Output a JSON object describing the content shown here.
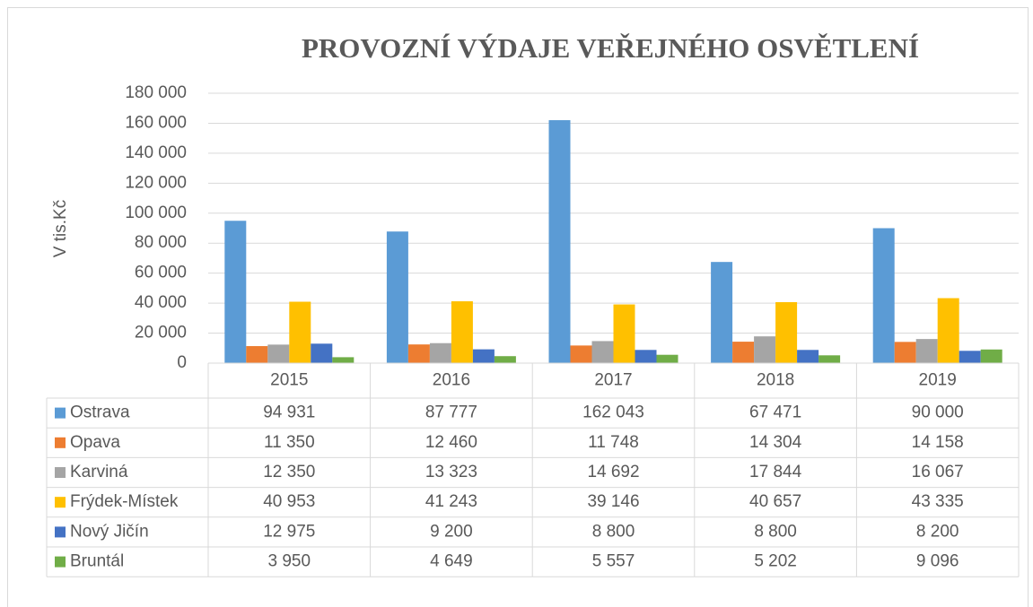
{
  "chart_data": {
    "type": "bar",
    "title": "PROVOZNÍ VÝDAJE VEŘEJNÉHO OSVĚTLENÍ",
    "y_label": "V tis.Kč",
    "categories": [
      "2015",
      "2016",
      "2017",
      "2018",
      "2019"
    ],
    "series": [
      {
        "name": "Ostrava",
        "color": "#5b9bd5",
        "values": [
          94931,
          87777,
          162043,
          67471,
          90000
        ],
        "value_labels": [
          "94 931",
          "87 777",
          "162 043",
          "67 471",
          "90 000"
        ]
      },
      {
        "name": "Opava",
        "color": "#ed7d31",
        "values": [
          11350,
          12460,
          11748,
          14304,
          14158
        ],
        "value_labels": [
          "11 350",
          "12 460",
          "11 748",
          "14 304",
          "14 158"
        ]
      },
      {
        "name": "Karviná",
        "color": "#a5a5a5",
        "values": [
          12350,
          13323,
          14692,
          17844,
          16067
        ],
        "value_labels": [
          "12 350",
          "13 323",
          "14 692",
          "17 844",
          "16 067"
        ]
      },
      {
        "name": "Frýdek-Místek",
        "color": "#ffc000",
        "values": [
          40953,
          41243,
          39146,
          40657,
          43335
        ],
        "value_labels": [
          "40 953",
          "41 243",
          "39 146",
          "40 657",
          "43 335"
        ]
      },
      {
        "name": "Nový Jičín",
        "color": "#4472c4",
        "values": [
          12975,
          9200,
          8800,
          8800,
          8200
        ],
        "value_labels": [
          "12 975",
          "9 200",
          "8 800",
          "8 800",
          "8 200"
        ]
      },
      {
        "name": "Bruntál",
        "color": "#70ad47",
        "values": [
          3950,
          4649,
          5557,
          5202,
          9096
        ],
        "value_labels": [
          "3 950",
          "4 649",
          "5 557",
          "5 202",
          "9 096"
        ]
      }
    ],
    "ylim": [
      0,
      180000
    ],
    "yticks": [
      0,
      {
        "value": 20000,
        "label": "20 000"
      },
      {
        "value": 40000,
        "label": "40 000"
      },
      {
        "value": 60000,
        "label": "60 000"
      },
      {
        "value": 80000,
        "label": "80 000"
      },
      {
        "value": 100000,
        "label": "100 000"
      },
      {
        "value": 120000,
        "label": "120 000"
      },
      {
        "value": 140000,
        "label": "140 000"
      },
      {
        "value": 160000,
        "label": "160 000"
      },
      {
        "value": 180000,
        "label": "180 000"
      }
    ],
    "grid": true
  }
}
